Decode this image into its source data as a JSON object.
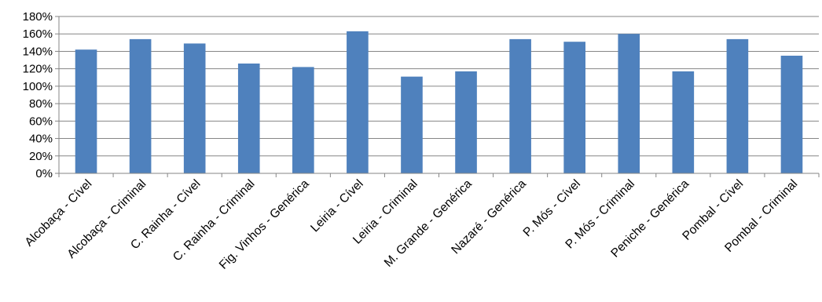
{
  "chart_data": {
    "type": "bar",
    "categories": [
      "Alcobaça - Cível",
      "Alcobaça - Criminal",
      "C. Rainha - Cível",
      "C. Rainha - Criminal",
      "Fig. Vinhos - Genérica",
      "Leiria - Cível",
      "Leiria - Criminal",
      "M. Grande - Genérica",
      "Nazaré - Genérica",
      "P. Mós - Cível",
      "P. Mós - Criminal",
      "Peniche - Genérica",
      "Pombal - Cível",
      "Pombal - Criminal"
    ],
    "values": [
      142,
      154,
      149,
      126,
      122,
      163,
      111,
      117,
      154,
      151,
      160,
      117,
      154,
      135
    ],
    "unit": "%",
    "y_ticks": [
      "0%",
      "20%",
      "40%",
      "60%",
      "80%",
      "100%",
      "120%",
      "140%",
      "160%",
      "180%"
    ],
    "ylim": [
      0,
      180
    ],
    "title": "",
    "xlabel": "",
    "ylabel": "",
    "grid": true,
    "legend": "none",
    "colors": {
      "bar": "#4f81bd",
      "grid": "#868686",
      "axis": "#868686"
    }
  }
}
